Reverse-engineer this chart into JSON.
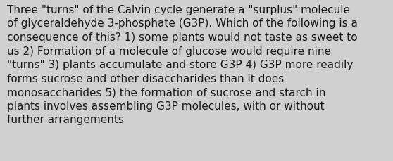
{
  "lines": [
    "Three \"turns\" of the Calvin cycle generate a \"surplus\" molecule",
    "of glyceraldehyde 3-phosphate (G3P). Which of the following is a",
    "consequence of this? 1) some plants would not taste as sweet to",
    "us 2) Formation of a molecule of glucose would require nine",
    "\"turns\" 3) plants accumulate and store G3P 4) G3P more readily",
    "forms sucrose and other disaccharides than it does",
    "monosaccharides 5) the formation of sucrose and starch in",
    "plants involves assembling G3P molecules, with or without",
    "further arrangements"
  ],
  "background_color": "#d0d0d0",
  "text_color": "#1a1a1a",
  "font_size": 11.0,
  "fig_width": 5.58,
  "fig_height": 2.3,
  "dpi": 100
}
